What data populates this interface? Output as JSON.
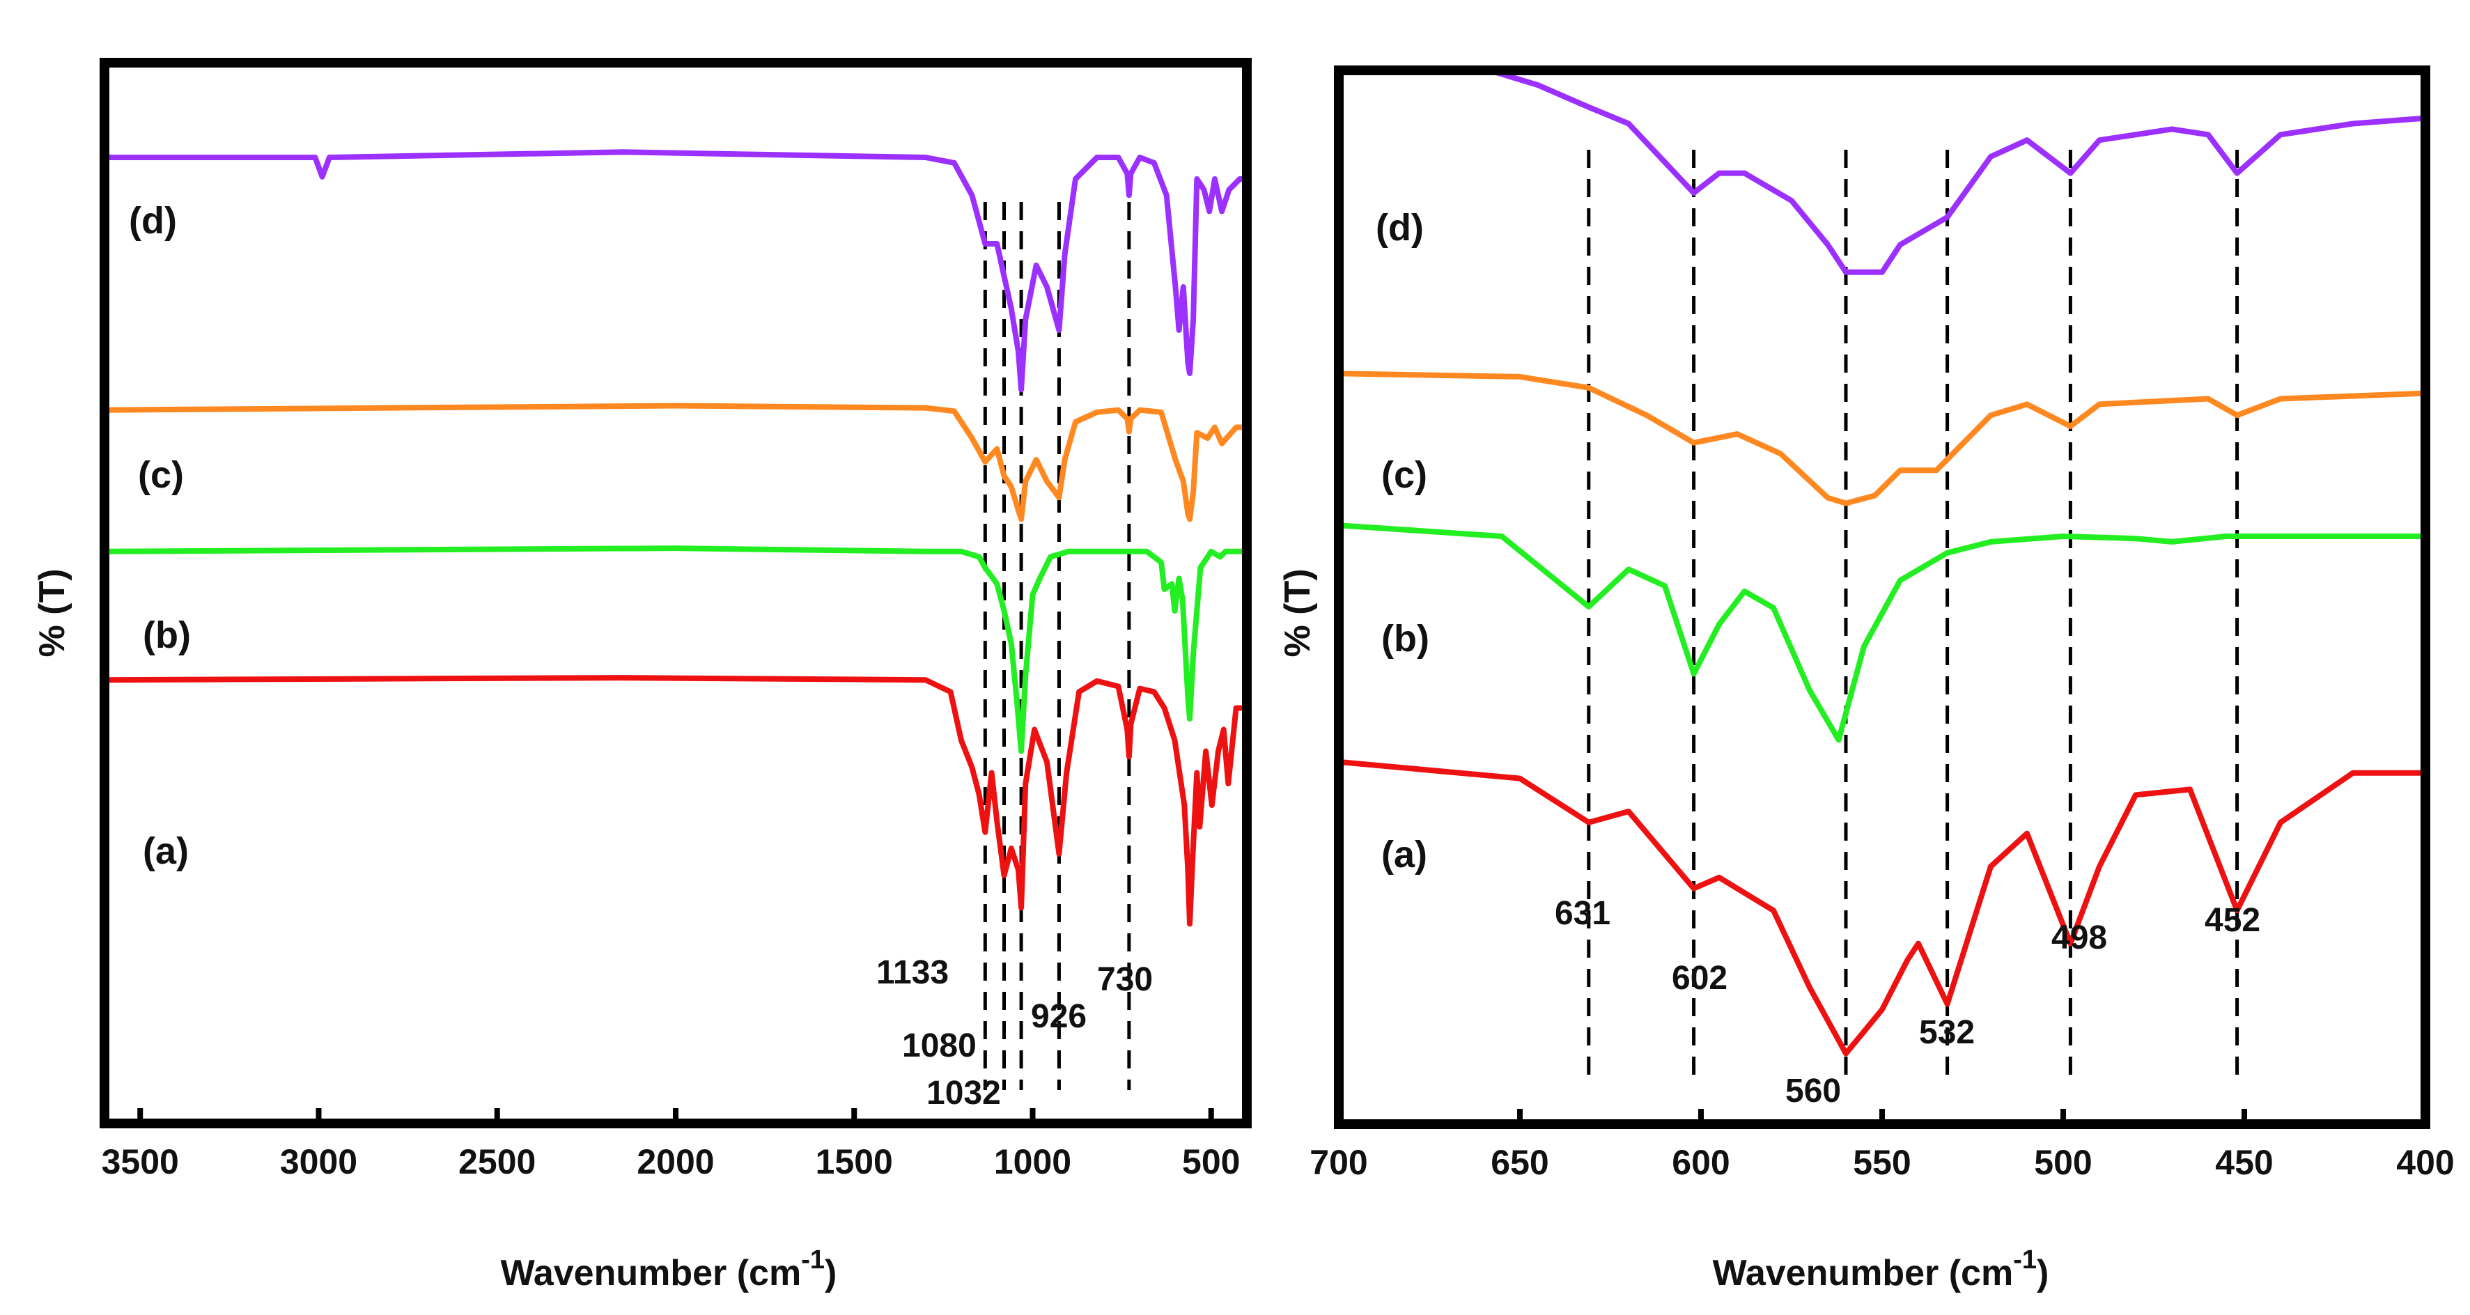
{
  "chart_data": [
    {
      "type": "line",
      "panel": "left",
      "xlabel": "Wavenumber (cm",
      "xlabel_sup": "-1",
      "xlabel_close": ")",
      "ylabel": "% (T)",
      "xlim": [
        3600,
        400
      ],
      "ticks": [
        3500,
        3000,
        2500,
        2000,
        1500,
        1000,
        500
      ],
      "tick_labels": [
        "3500",
        "3000",
        "2500",
        "2000",
        "1500",
        "1000",
        "500"
      ],
      "series": [
        {
          "name": "(d)",
          "color": "#9b30ff",
          "baseline": 88,
          "points": [
            [
              3600,
              88
            ],
            [
              3100,
              88
            ],
            [
              3010,
              88
            ],
            [
              2990,
              86.2
            ],
            [
              2970,
              88
            ],
            [
              2150,
              88.5
            ],
            [
              1300,
              88
            ],
            [
              1220,
              87.5
            ],
            [
              1170,
              84.5
            ],
            [
              1133,
              80
            ],
            [
              1100,
              80
            ],
            [
              1080,
              77
            ],
            [
              1060,
              74
            ],
            [
              1040,
              70
            ],
            [
              1032,
              66.5
            ],
            [
              1020,
              73
            ],
            [
              990,
              78
            ],
            [
              960,
              76
            ],
            [
              926,
              72
            ],
            [
              910,
              79
            ],
            [
              880,
              86
            ],
            [
              820,
              88
            ],
            [
              760,
              88
            ],
            [
              735,
              86.5
            ],
            [
              730,
              84.5
            ],
            [
              725,
              86.5
            ],
            [
              700,
              88
            ],
            [
              660,
              87.5
            ],
            [
              625,
              84.5
            ],
            [
              600,
              76
            ],
            [
              590,
              72
            ],
            [
              578,
              76
            ],
            [
              565,
              69
            ],
            [
              560,
              68
            ],
            [
              550,
              73
            ],
            [
              540,
              86
            ],
            [
              520,
              85
            ],
            [
              505,
              83
            ],
            [
              490,
              86
            ],
            [
              470,
              83
            ],
            [
              450,
              85
            ],
            [
              420,
              86
            ],
            [
              400,
              86
            ]
          ]
        },
        {
          "name": "(c)",
          "color": "#ff8820",
          "baseline": 64.6,
          "points": [
            [
              3600,
              64.6
            ],
            [
              2000,
              65
            ],
            [
              1300,
              64.8
            ],
            [
              1220,
              64.5
            ],
            [
              1170,
              62
            ],
            [
              1133,
              59.8
            ],
            [
              1100,
              61
            ],
            [
              1080,
              58.5
            ],
            [
              1060,
              57.5
            ],
            [
              1040,
              55.3
            ],
            [
              1032,
              54.5
            ],
            [
              1020,
              58
            ],
            [
              990,
              60
            ],
            [
              960,
              58
            ],
            [
              926,
              56.5
            ],
            [
              910,
              60
            ],
            [
              880,
              63.5
            ],
            [
              820,
              64.4
            ],
            [
              760,
              64.6
            ],
            [
              735,
              63.8
            ],
            [
              730,
              62.6
            ],
            [
              725,
              63.8
            ],
            [
              700,
              64.6
            ],
            [
              640,
              64.4
            ],
            [
              600,
              60
            ],
            [
              578,
              58
            ],
            [
              565,
              55
            ],
            [
              560,
              54.5
            ],
            [
              550,
              57
            ],
            [
              540,
              62.5
            ],
            [
              510,
              62
            ],
            [
              490,
              63
            ],
            [
              470,
              61.5
            ],
            [
              430,
              63
            ],
            [
              400,
              63
            ]
          ]
        },
        {
          "name": "(b)",
          "color": "#22ee22",
          "baseline": 51.5,
          "points": [
            [
              3600,
              51.5
            ],
            [
              2000,
              51.8
            ],
            [
              1300,
              51.5
            ],
            [
              1200,
              51.5
            ],
            [
              1150,
              51
            ],
            [
              1133,
              50
            ],
            [
              1100,
              48.5
            ],
            [
              1080,
              46
            ],
            [
              1060,
              43
            ],
            [
              1045,
              38
            ],
            [
              1032,
              33
            ],
            [
              1020,
              40
            ],
            [
              1000,
              47.5
            ],
            [
              980,
              49
            ],
            [
              950,
              51
            ],
            [
              900,
              51.5
            ],
            [
              730,
              51.5
            ],
            [
              680,
              51.5
            ],
            [
              640,
              50.5
            ],
            [
              631,
              48
            ],
            [
              610,
              48.5
            ],
            [
              602,
              46
            ],
            [
              590,
              49
            ],
            [
              580,
              47
            ],
            [
              565,
              38
            ],
            [
              560,
              36
            ],
            [
              550,
              42
            ],
            [
              530,
              50
            ],
            [
              500,
              51.5
            ],
            [
              475,
              51
            ],
            [
              460,
              51.5
            ],
            [
              400,
              51.5
            ]
          ]
        },
        {
          "name": "(a)",
          "color": "#ee1111",
          "baseline": 39.6,
          "points": [
            [
              3600,
              39.6
            ],
            [
              2150,
              39.8
            ],
            [
              1300,
              39.6
            ],
            [
              1230,
              38.5
            ],
            [
              1200,
              34
            ],
            [
              1170,
              31.5
            ],
            [
              1150,
              29
            ],
            [
              1133,
              25.5
            ],
            [
              1115,
              31
            ],
            [
              1100,
              26.5
            ],
            [
              1080,
              21.5
            ],
            [
              1060,
              24
            ],
            [
              1040,
              22
            ],
            [
              1032,
              18.5
            ],
            [
              1020,
              30
            ],
            [
              995,
              35
            ],
            [
              960,
              32
            ],
            [
              926,
              23.5
            ],
            [
              905,
              31
            ],
            [
              870,
              38.5
            ],
            [
              820,
              39.5
            ],
            [
              760,
              39
            ],
            [
              735,
              35
            ],
            [
              730,
              32.5
            ],
            [
              725,
              35.5
            ],
            [
              700,
              38.8
            ],
            [
              660,
              38.5
            ],
            [
              631,
              37
            ],
            [
              602,
              34
            ],
            [
              575,
              28
            ],
            [
              565,
              22
            ],
            [
              560,
              17
            ],
            [
              552,
              23
            ],
            [
              540,
              31
            ],
            [
              532,
              26
            ],
            [
              515,
              33
            ],
            [
              498,
              28
            ],
            [
              480,
              33
            ],
            [
              465,
              35
            ],
            [
              452,
              30
            ],
            [
              430,
              37
            ],
            [
              400,
              37
            ]
          ]
        }
      ],
      "curve_labels": [
        "(d)",
        "(c)",
        "(b)",
        "(a)"
      ],
      "dashed_peaks": [
        1133,
        1080,
        1032,
        926,
        730
      ],
      "peak_labels": [
        {
          "text": "1133",
          "x": 1133
        },
        {
          "text": "1080",
          "x": 1080
        },
        {
          "text": "1032",
          "x": 1032
        },
        {
          "text": "926",
          "x": 926
        },
        {
          "text": "730",
          "x": 730
        }
      ]
    },
    {
      "type": "line",
      "panel": "right",
      "xlabel": "Wavenumber (cm",
      "xlabel_sup": "-1",
      "xlabel_close": ")",
      "ylabel": "% (T)",
      "xlim": [
        700,
        400
      ],
      "ticks": [
        700,
        650,
        600,
        550,
        500,
        450,
        400
      ],
      "tick_labels": [
        "700",
        "650",
        "600",
        "550",
        "500",
        "450",
        "400"
      ],
      "series": [
        {
          "name": "(d)",
          "color": "#9b30ff",
          "baseline": 92.5,
          "points": [
            [
              700,
              92.5
            ],
            [
              660,
              92.5
            ],
            [
              645,
              91
            ],
            [
              631,
              89
            ],
            [
              620,
              87.5
            ],
            [
              610,
              84
            ],
            [
              602,
              81.2
            ],
            [
              595,
              83
            ],
            [
              588,
              83
            ],
            [
              575,
              80.5
            ],
            [
              565,
              76.5
            ],
            [
              560,
              74
            ],
            [
              550,
              74
            ],
            [
              545,
              76.5
            ],
            [
              532,
              79
            ],
            [
              520,
              84.5
            ],
            [
              510,
              86
            ],
            [
              498,
              83
            ],
            [
              490,
              86
            ],
            [
              470,
              87
            ],
            [
              460,
              86.5
            ],
            [
              452,
              83
            ],
            [
              440,
              86.5
            ],
            [
              420,
              87.5
            ],
            [
              400,
              88
            ]
          ]
        },
        {
          "name": "(c)",
          "color": "#ff8820",
          "baseline": 64.8,
          "points": [
            [
              700,
              64.8
            ],
            [
              650,
              64.5
            ],
            [
              631,
              63.5
            ],
            [
              615,
              61
            ],
            [
              602,
              58.5
            ],
            [
              590,
              59.3
            ],
            [
              578,
              57.5
            ],
            [
              565,
              53.5
            ],
            [
              560,
              53
            ],
            [
              552,
              53.7
            ],
            [
              545,
              56
            ],
            [
              535,
              56
            ],
            [
              532,
              57
            ],
            [
              520,
              61
            ],
            [
              510,
              62
            ],
            [
              498,
              60
            ],
            [
              490,
              62
            ],
            [
              460,
              62.5
            ],
            [
              452,
              61
            ],
            [
              440,
              62.5
            ],
            [
              400,
              63
            ]
          ]
        },
        {
          "name": "(b)",
          "color": "#22ee22",
          "baseline": 51,
          "points": [
            [
              700,
              51
            ],
            [
              655,
              50
            ],
            [
              640,
              46
            ],
            [
              631,
              43.6
            ],
            [
              620,
              47
            ],
            [
              610,
              45.5
            ],
            [
              602,
              37.5
            ],
            [
              595,
              42
            ],
            [
              588,
              45
            ],
            [
              580,
              43.5
            ],
            [
              570,
              36
            ],
            [
              562,
              31.5
            ],
            [
              555,
              40
            ],
            [
              545,
              46
            ],
            [
              532,
              48.5
            ],
            [
              520,
              49.5
            ],
            [
              500,
              50
            ],
            [
              480,
              49.8
            ],
            [
              470,
              49.5
            ],
            [
              455,
              50
            ],
            [
              400,
              50
            ]
          ]
        },
        {
          "name": "(a)",
          "color": "#ee1111",
          "baseline": 29.5,
          "points": [
            [
              700,
              29.5
            ],
            [
              650,
              28
            ],
            [
              631,
              24
            ],
            [
              620,
              25
            ],
            [
              602,
              18
            ],
            [
              595,
              19
            ],
            [
              580,
              16
            ],
            [
              570,
              9
            ],
            [
              560,
              3
            ],
            [
              550,
              7
            ],
            [
              543,
              11.5
            ],
            [
              540,
              13
            ],
            [
              532,
              7.5
            ],
            [
              520,
              20
            ],
            [
              510,
              23
            ],
            [
              498,
              13
            ],
            [
              490,
              20
            ],
            [
              480,
              26.5
            ],
            [
              465,
              27
            ],
            [
              452,
              16
            ],
            [
              440,
              24
            ],
            [
              420,
              28.5
            ],
            [
              400,
              28.5
            ]
          ]
        }
      ],
      "curve_labels": [
        "(d)",
        "(c)",
        "(b)",
        "(a)"
      ],
      "dashed_peaks": [
        631,
        602,
        560,
        532,
        498,
        452
      ],
      "peak_labels": [
        {
          "text": "631",
          "x": 631
        },
        {
          "text": "602",
          "x": 602
        },
        {
          "text": "560",
          "x": 560
        },
        {
          "text": "532",
          "x": 532
        },
        {
          "text": "498",
          "x": 498
        },
        {
          "text": "452",
          "x": 452
        }
      ]
    }
  ]
}
